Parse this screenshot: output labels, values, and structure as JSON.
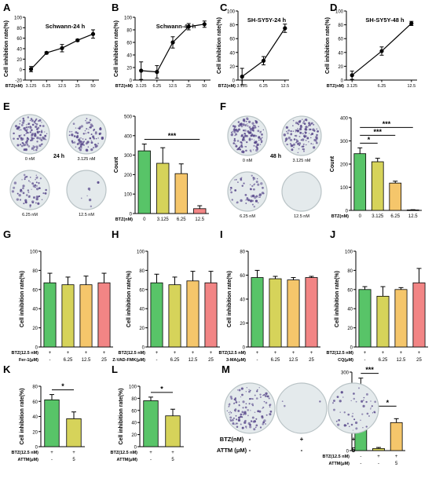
{
  "figure": {
    "colors": {
      "green": "#58c468",
      "olive": "#d6d35a",
      "orange": "#f5c66b",
      "red": "#f28585",
      "axis": "#000000",
      "plate_bg": "#e4eaec",
      "colony": "#5a4a8c"
    },
    "plates": [
      {
        "panel": "E",
        "label": "0 nM",
        "density": 0.9
      },
      {
        "panel": "E",
        "label": "3.125 nM",
        "density": 0.65
      },
      {
        "panel": "E",
        "label": "6.25 nM",
        "density": 0.45
      },
      {
        "panel": "E",
        "label": "12.5 nM",
        "density": 0.05
      },
      {
        "panel": "E",
        "label": "24 h",
        "density": 0
      },
      {
        "panel": "F",
        "label": "0 nM",
        "density": 1.0
      },
      {
        "panel": "F",
        "label": "3.125 nM",
        "density": 0.8
      },
      {
        "panel": "F",
        "label": "6.25 nM",
        "density": 0.4
      },
      {
        "panel": "F",
        "label": "12.5 nM",
        "density": 0.0
      },
      {
        "panel": "F",
        "label": "48 h",
        "density": 0
      },
      {
        "panel": "M",
        "label": "",
        "density": 0.9
      },
      {
        "panel": "M",
        "label": "",
        "density": 0.02
      },
      {
        "panel": "M",
        "label": "",
        "density": 0.35
      }
    ],
    "m_condition_table": {
      "rows": [
        {
          "label": "BTZ(nM)",
          "values": [
            "-",
            "+",
            "+"
          ]
        },
        {
          "label": "ATTM (μM)",
          "values": [
            "-",
            "-",
            "5"
          ]
        }
      ]
    }
  },
  "chart_data": [
    {
      "panel": "A",
      "type": "line",
      "title": "Schwann-24 h",
      "ylabel": "Cell inhibition rate(%)",
      "xlabel": "BTZ(nM)",
      "x": [
        "3.125",
        "6.25",
        "12.5",
        "25",
        "50"
      ],
      "values": [
        1,
        32,
        41,
        56,
        68
      ],
      "errors": [
        5,
        2,
        7,
        2,
        8
      ],
      "ylim": [
        -20,
        100
      ],
      "yticks": [
        "-20",
        "0",
        "20",
        "40",
        "60",
        "80",
        "100"
      ]
    },
    {
      "panel": "B",
      "type": "line",
      "title": "Schwann-48 h",
      "ylabel": "Cell inhibition rate(%)",
      "xlabel": "BTZ(nM)",
      "x": [
        "3.125",
        "6.25",
        "12.5",
        "25",
        "50"
      ],
      "values": [
        15,
        13,
        60,
        85,
        89
      ],
      "errors": [
        14,
        10,
        9,
        5,
        5
      ],
      "ylim": [
        0,
        100
      ],
      "yticks": [
        "0",
        "20",
        "40",
        "60",
        "80",
        "100"
      ]
    },
    {
      "panel": "C",
      "type": "line",
      "title": "SH-SY5Y-24 h",
      "ylabel": "Cell inhibition rate(%)",
      "xlabel": "BTZ(nM)",
      "x": [
        "3.125",
        "6.25",
        "12.5"
      ],
      "values": [
        5,
        28,
        75
      ],
      "errors": [
        12,
        6,
        6
      ],
      "ylim": [
        0,
        100
      ],
      "yticks": [
        "0",
        "20",
        "40",
        "60",
        "80",
        "100"
      ]
    },
    {
      "panel": "D",
      "type": "line",
      "title": "SH-SY5Y-48 h",
      "ylabel": "Cell inhibition rate(%)",
      "xlabel": "BTZ(nM)",
      "x": [
        "3.125",
        "6.25",
        "12.5"
      ],
      "values": [
        7,
        42,
        82
      ],
      "errors": [
        6,
        6,
        3
      ],
      "ylim": [
        0,
        100
      ],
      "yticks": [
        "0",
        "20",
        "40",
        "60",
        "80",
        "100"
      ]
    },
    {
      "panel": "E",
      "type": "bar",
      "ylabel": "Count",
      "categories": [
        "0",
        "3.125",
        "6.25",
        "12.5"
      ],
      "row_labels": [
        "BTZ(nM)"
      ],
      "rows": [
        [
          "0",
          "3.125",
          "6.25",
          "12.5"
        ]
      ],
      "values": [
        322,
        258,
        205,
        25
      ],
      "errors": [
        35,
        80,
        50,
        15
      ],
      "colors": [
        "#58c468",
        "#d6d35a",
        "#f5c66b",
        "#f28585"
      ],
      "ylim": [
        0,
        500
      ],
      "yticks": [
        "0",
        "100",
        "200",
        "300",
        "400",
        "500"
      ],
      "annotations": [
        {
          "text": "***",
          "from": 0,
          "to": 3
        }
      ]
    },
    {
      "panel": "F",
      "type": "bar",
      "ylabel": "Count",
      "categories": [
        "0",
        "3.125",
        "6.25",
        "12.5"
      ],
      "row_labels": [
        "BTZ(nM)"
      ],
      "rows": [
        [
          "0",
          "3.125",
          "6.25",
          "12.5"
        ]
      ],
      "values": [
        245,
        210,
        118,
        2
      ],
      "errors": [
        25,
        15,
        8,
        1
      ],
      "colors": [
        "#58c468",
        "#d6d35a",
        "#f5c66b",
        "#f28585"
      ],
      "ylim": [
        0,
        400
      ],
      "yticks": [
        "0",
        "100",
        "200",
        "300",
        "400"
      ],
      "annotations": [
        {
          "text": "*",
          "from": 0,
          "to": 1
        },
        {
          "text": "***",
          "from": 0,
          "to": 2
        },
        {
          "text": "***",
          "from": 0,
          "to": 3
        }
      ]
    },
    {
      "panel": "G",
      "type": "bar",
      "ylabel": "Cell inhibition rate(%)",
      "categories": [
        "1",
        "2",
        "3",
        "4"
      ],
      "row_labels": [
        "BTZ(12.5 nM)",
        "Fer-1(μM)"
      ],
      "rows": [
        [
          "+",
          "+",
          "+",
          "+"
        ],
        [
          "-",
          "6.25",
          "12.5",
          "25"
        ]
      ],
      "values": [
        67,
        65,
        65,
        67
      ],
      "errors": [
        10,
        8,
        9,
        10
      ],
      "colors": [
        "#58c468",
        "#d6d35a",
        "#f5c66b",
        "#f28585"
      ],
      "ylim": [
        0,
        100
      ],
      "yticks": [
        "0",
        "20",
        "40",
        "60",
        "80",
        "100"
      ]
    },
    {
      "panel": "H",
      "type": "bar",
      "ylabel": "Cell inhibition rate(%)",
      "categories": [
        "1",
        "2",
        "3",
        "4"
      ],
      "row_labels": [
        "BTZ(12.5 nM)",
        "Z-VAD-FMK(μM)"
      ],
      "rows": [
        [
          "+",
          "+",
          "+",
          "+"
        ],
        [
          "-",
          "6.25",
          "12.5",
          "25"
        ]
      ],
      "values": [
        67,
        65,
        69,
        67
      ],
      "errors": [
        9,
        8,
        10,
        12
      ],
      "colors": [
        "#58c468",
        "#d6d35a",
        "#f5c66b",
        "#f28585"
      ],
      "ylim": [
        0,
        100
      ],
      "yticks": [
        "0",
        "20",
        "40",
        "60",
        "80",
        "100"
      ]
    },
    {
      "panel": "I",
      "type": "bar",
      "ylabel": "Cell inhibition rate(%)",
      "categories": [
        "1",
        "2",
        "3",
        "4"
      ],
      "row_labels": [
        "BTZ(12.5 nM)",
        "3-MA(μM)"
      ],
      "rows": [
        [
          "+",
          "+",
          "+",
          "+"
        ],
        [
          "-",
          "6.25",
          "12.5",
          "25"
        ]
      ],
      "values": [
        58,
        57,
        56,
        58
      ],
      "errors": [
        6,
        2,
        2,
        1
      ],
      "colors": [
        "#58c468",
        "#d6d35a",
        "#f5c66b",
        "#f28585"
      ],
      "ylim": [
        0,
        80
      ],
      "yticks": [
        "0",
        "20",
        "40",
        "60",
        "80"
      ]
    },
    {
      "panel": "J",
      "type": "bar",
      "ylabel": "Cell inhibition rate(%)",
      "categories": [
        "1",
        "2",
        "3",
        "4"
      ],
      "row_labels": [
        "BTZ(12.5 nM)",
        "CQ(μM)"
      ],
      "rows": [
        [
          "+",
          "+",
          "+",
          "+"
        ],
        [
          "-",
          "6.25",
          "12.5",
          "25"
        ]
      ],
      "values": [
        60,
        53,
        60,
        67
      ],
      "errors": [
        3,
        10,
        2,
        15
      ],
      "colors": [
        "#58c468",
        "#d6d35a",
        "#f5c66b",
        "#f28585"
      ],
      "ylim": [
        0,
        100
      ],
      "yticks": [
        "0",
        "20",
        "40",
        "60",
        "80",
        "100"
      ]
    },
    {
      "panel": "K",
      "type": "bar",
      "ylabel": "Cell inhibition rate(%)",
      "categories": [
        "1",
        "2"
      ],
      "row_labels": [
        "BTZ(12.5 nM)",
        "ATTM(μM)"
      ],
      "rows": [
        [
          "+",
          "+"
        ],
        [
          "-",
          "5"
        ]
      ],
      "values": [
        62,
        37
      ],
      "errors": [
        7,
        9
      ],
      "colors": [
        "#58c468",
        "#d6d35a"
      ],
      "ylim": [
        0,
        80
      ],
      "yticks": [
        "0",
        "20",
        "40",
        "60",
        "80"
      ],
      "annotations": [
        {
          "text": "*",
          "from": 0,
          "to": 1
        }
      ]
    },
    {
      "panel": "L",
      "type": "bar",
      "ylabel": "Cell inhibition rate(%)",
      "categories": [
        "1",
        "2"
      ],
      "row_labels": [
        "BTZ(12.5 nM)",
        "ATTM(μM)"
      ],
      "rows": [
        [
          "+",
          "+"
        ],
        [
          "-",
          "5"
        ]
      ],
      "values": [
        76,
        51
      ],
      "errors": [
        6,
        11
      ],
      "colors": [
        "#58c468",
        "#d6d35a"
      ],
      "ylim": [
        0,
        100
      ],
      "yticks": [
        "0",
        "20",
        "40",
        "60",
        "80",
        "100"
      ],
      "annotations": [
        {
          "text": "*",
          "from": 0,
          "to": 1
        }
      ]
    },
    {
      "panel": "M",
      "type": "bar",
      "ylabel": "Count",
      "categories": [
        "1",
        "2",
        "3"
      ],
      "row_labels": [
        "BTZ(12.5 nM)",
        "ATTM(μM)"
      ],
      "rows": [
        [
          "-",
          "+",
          "+"
        ],
        [
          "-",
          "-",
          "5"
        ]
      ],
      "values": [
        222,
        8,
        107
      ],
      "errors": [
        55,
        4,
        15
      ],
      "colors": [
        "#58c468",
        "#d6d35a",
        "#f5c66b"
      ],
      "ylim": [
        0,
        300
      ],
      "yticks": [
        "0",
        "100",
        "200",
        "300"
      ],
      "annotations": [
        {
          "text": "***",
          "from": 0,
          "to": 1
        },
        {
          "text": "*",
          "from": 1,
          "to": 2
        }
      ]
    }
  ]
}
